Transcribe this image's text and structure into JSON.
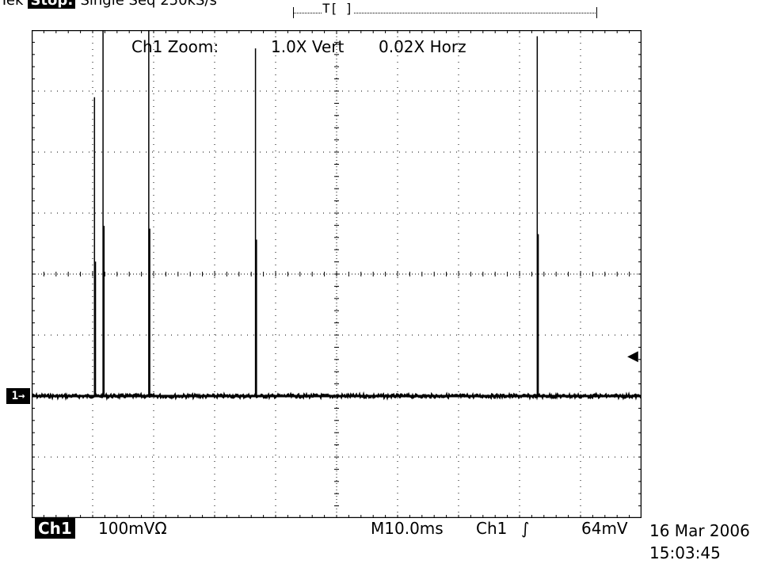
{
  "top_status": {
    "brand": "Tek",
    "run_state": "Stop:",
    "mode": "Single Seq",
    "sample_rate": "250kS/s"
  },
  "trigger_position": {
    "marker": "T[ ]"
  },
  "zoom": {
    "label": "Ch1 Zoom:",
    "vertical": "1.0X Vert",
    "horizontal": "0.02X Horz"
  },
  "channel_marker": "1→",
  "trigger_level_marker": "◀",
  "bottom": {
    "channel": "Ch1",
    "volts_per_div": "100mVΩ",
    "timebase": "M10.0ms",
    "trigger_source": "Ch1",
    "trigger_slope": "∫",
    "trigger_level": "64mV"
  },
  "datetime": {
    "date": "16 Mar 2006",
    "time": "15:03:45"
  },
  "waveform": {
    "color": "#000000",
    "baseline_division": -2.0,
    "spikes": [
      {
        "time_div": 1.03,
        "peak_div": 2.9
      },
      {
        "time_div": 1.17,
        "peak_div": 4.2
      },
      {
        "time_div": 1.92,
        "peak_div": 4.1
      },
      {
        "time_div": 3.67,
        "peak_div": 3.7
      },
      {
        "time_div": 8.29,
        "peak_div": 3.9
      }
    ]
  }
}
